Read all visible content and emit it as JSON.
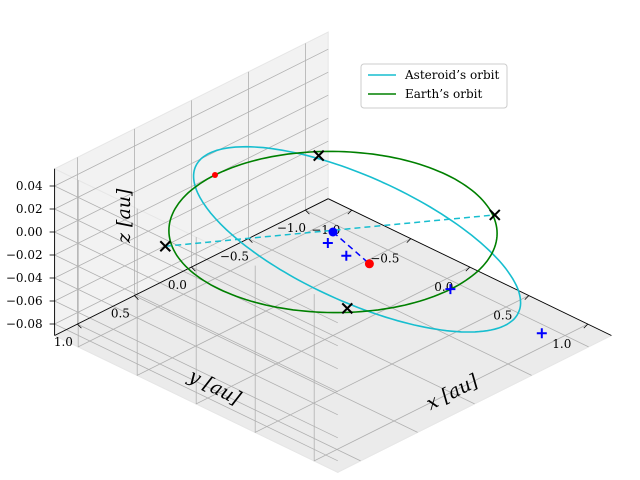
{
  "chart_data": {
    "type": "3d-line",
    "title": "",
    "axes": {
      "x": {
        "label": "x [au]",
        "lim": [
          -1.2,
          1.2
        ],
        "ticks": [
          "−1.0",
          "−0.5",
          "0.0",
          "0.5",
          "1.0"
        ],
        "tick_values": [
          -1.0,
          -0.5,
          0.0,
          0.5,
          1.0
        ]
      },
      "y": {
        "label": "y [au]",
        "lim": [
          -1.2,
          1.2
        ],
        "ticks": [
          "1.0",
          "0.5",
          "0.0",
          "−0.5",
          "−1.0"
        ],
        "tick_values": [
          1.0,
          0.5,
          0.0,
          -0.5,
          -1.0
        ]
      },
      "z": {
        "label": "z [au]",
        "lim": [
          -0.09,
          0.055
        ],
        "ticks": [
          "0.04",
          "0.02",
          "0.00",
          "−0.02",
          "−0.04",
          "−0.06",
          "−0.08"
        ],
        "tick_values": [
          0.04,
          0.02,
          0.0,
          -0.02,
          -0.04,
          -0.06,
          -0.08
        ]
      }
    },
    "grid": true,
    "legend": {
      "placement": "top-right",
      "entries": [
        "Asteroid’s orbit",
        "Earth’s orbit"
      ]
    },
    "series": [
      {
        "name": "Asteroid’s orbit",
        "color": "#17becf",
        "kind": "line",
        "description_points": "ellipse inclined to the ecliptic",
        "a": 1.0,
        "e": 0.15,
        "inclination_deg": 4.5,
        "node_deg": 35,
        "peri_deg": 90
      },
      {
        "name": "Earth’s orbit",
        "color": "#008000",
        "kind": "line",
        "a": 1.0,
        "e": 0.0
      }
    ],
    "markers": {
      "sun": {
        "color": "#0000ff",
        "xyz": [
          0,
          0,
          0
        ]
      },
      "asteroid_position": {
        "color": "#ff0000",
        "xyz": [
          0.55,
          0.25,
          0.012
        ]
      },
      "earth_position": {
        "color": "#ff0000",
        "xyz": [
          -1.0,
          0.0,
          0.0
        ]
      },
      "nodes_x": [
        [
          0.72,
          0.62,
          0.0
        ],
        [
          -0.72,
          -0.62,
          0.0
        ],
        [
          -0.6,
          0.85,
          0.0
        ],
        [
          0.55,
          -0.85,
          0.0
        ]
      ],
      "plus": [
        [
          0.42,
          0.48,
          0.035
        ],
        [
          0.48,
          0.38,
          0.022
        ],
        [
          0.85,
          -0.15,
          -0.015
        ],
        [
          0.9,
          -0.9,
          -0.088
        ]
      ]
    }
  }
}
